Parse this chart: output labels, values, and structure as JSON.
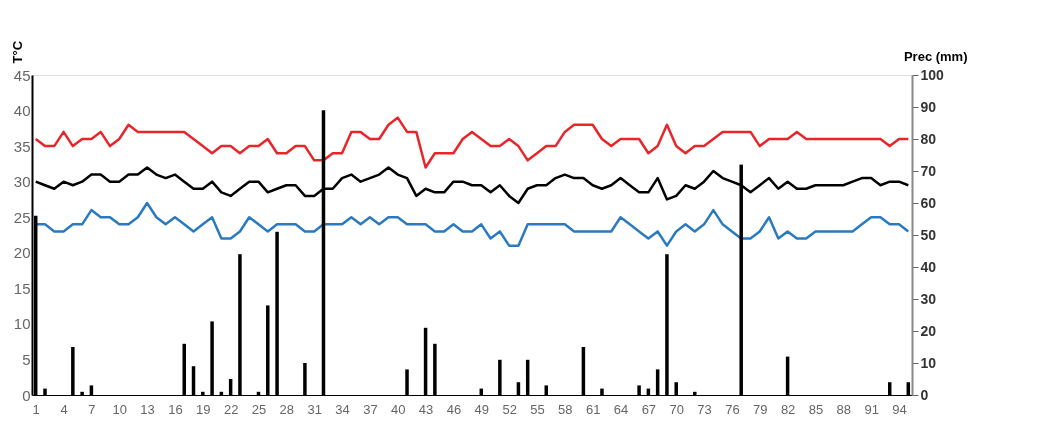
{
  "chart_data": {
    "type": "line",
    "ylabel": "T°C",
    "y2label": "Prec (mm)",
    "x": [
      1,
      2,
      3,
      4,
      5,
      6,
      7,
      8,
      9,
      10,
      11,
      12,
      13,
      14,
      15,
      16,
      17,
      18,
      19,
      20,
      21,
      22,
      23,
      24,
      25,
      26,
      27,
      28,
      29,
      30,
      31,
      32,
      33,
      34,
      35,
      36,
      37,
      38,
      39,
      40,
      41,
      42,
      43,
      44,
      45,
      46,
      47,
      48,
      49,
      50,
      51,
      52,
      53,
      54,
      55,
      56,
      57,
      58,
      59,
      60,
      61,
      62,
      63,
      64,
      65,
      66,
      67,
      68,
      69,
      70,
      71,
      72,
      73,
      74,
      75,
      76,
      77,
      78,
      79,
      80,
      81,
      82,
      83,
      84,
      85,
      86,
      87,
      88,
      89,
      90,
      91,
      92,
      93,
      94,
      95
    ],
    "xlim": [
      0.6,
      95.4
    ],
    "xticks": [
      1,
      4,
      7,
      10,
      13,
      16,
      19,
      22,
      25,
      28,
      31,
      34,
      37,
      40,
      43,
      46,
      49,
      52,
      55,
      58,
      61,
      64,
      67,
      70,
      73,
      76,
      79,
      82,
      85,
      88,
      91,
      94
    ],
    "ylim": [
      0,
      45
    ],
    "yticks": [
      0,
      5,
      10,
      15,
      20,
      25,
      30,
      35,
      40,
      45
    ],
    "y2lim": [
      0,
      100
    ],
    "y2ticks": [
      0,
      10,
      20,
      30,
      40,
      50,
      60,
      70,
      80,
      90,
      100
    ],
    "grid": false,
    "legend": false,
    "marker": "none",
    "line_style": "solid",
    "series": [
      {
        "color": "#e8262a",
        "values": [
          36,
          35,
          35,
          37,
          35,
          36,
          36,
          37,
          35,
          36,
          38,
          37,
          37,
          37,
          37,
          37,
          37,
          36,
          35,
          34,
          35,
          35,
          34,
          35,
          35,
          36,
          34,
          34,
          35,
          35,
          33,
          33,
          34,
          34,
          37,
          37,
          36,
          36,
          38,
          39,
          37,
          37,
          32,
          34,
          34,
          34,
          36,
          37,
          36,
          35,
          35,
          36,
          35,
          33,
          34,
          35,
          35,
          37,
          38,
          38,
          38,
          36,
          35,
          36,
          36,
          36,
          34,
          35,
          38,
          35,
          34,
          35,
          35,
          36,
          37,
          37,
          37,
          37,
          35,
          36,
          36,
          36,
          37,
          36,
          36,
          36,
          36,
          36,
          36,
          36,
          36,
          36,
          35,
          36,
          36
        ]
      },
      {
        "color": "#000000",
        "values": [
          30,
          29.5,
          29,
          30,
          29.5,
          30,
          31,
          31,
          30,
          30,
          31,
          31,
          32,
          31,
          30.5,
          31,
          30,
          29,
          29,
          30,
          28.5,
          28,
          29,
          30,
          30,
          28.5,
          29,
          29.5,
          29.5,
          28,
          28,
          29,
          29,
          30.5,
          31,
          30,
          30.5,
          31,
          32,
          31,
          30.5,
          28,
          29,
          28.5,
          28.5,
          30,
          30,
          29.5,
          29.5,
          28.5,
          29.5,
          28,
          27,
          29,
          29.5,
          29.5,
          30.5,
          31,
          30.5,
          30.5,
          29.5,
          29,
          29.5,
          30.5,
          29.5,
          28.5,
          28.5,
          30.5,
          27.5,
          28,
          29.5,
          29,
          30,
          31.5,
          30.5,
          30,
          29.5,
          28.5,
          29.5,
          30.5,
          29,
          30,
          29,
          29,
          29.5,
          29.5,
          29.5,
          29.5,
          30,
          30.5,
          30.5,
          29.5,
          30,
          30,
          29.5
        ]
      },
      {
        "color": "#2a7abf",
        "values": [
          24,
          24,
          23,
          23,
          24,
          24,
          26,
          25,
          25,
          24,
          24,
          25,
          27,
          25,
          24,
          25,
          24,
          23,
          24,
          25,
          22,
          22,
          23,
          25,
          24,
          23,
          24,
          24,
          24,
          23,
          23,
          24,
          24,
          24,
          25,
          24,
          25,
          24,
          25,
          25,
          24,
          24,
          24,
          23,
          23,
          24,
          23,
          23,
          24,
          22,
          23,
          21,
          21,
          24,
          24,
          24,
          24,
          24,
          23,
          23,
          23,
          23,
          23,
          25,
          24,
          23,
          22,
          23,
          21,
          23,
          24,
          23,
          24,
          26,
          24,
          23,
          22,
          22,
          23,
          25,
          22,
          23,
          22,
          22,
          23,
          23,
          23,
          23,
          23,
          24,
          25,
          25,
          24,
          24,
          23
        ]
      },
      {
        "type": "bar",
        "axis": "y2",
        "color": "#000000",
        "values": [
          56,
          2,
          null,
          null,
          15,
          1,
          3,
          null,
          null,
          null,
          null,
          null,
          null,
          null,
          null,
          null,
          16,
          9,
          1,
          23,
          1,
          5,
          44,
          null,
          1,
          28,
          51,
          null,
          null,
          10,
          null,
          89,
          null,
          null,
          null,
          null,
          null,
          null,
          null,
          null,
          8,
          null,
          21,
          16,
          null,
          null,
          null,
          null,
          2,
          null,
          11,
          null,
          4,
          11,
          null,
          3,
          null,
          null,
          null,
          15,
          null,
          2,
          null,
          null,
          null,
          3,
          2,
          8,
          44,
          4,
          null,
          1,
          null,
          null,
          null,
          null,
          72,
          null,
          null,
          null,
          null,
          12,
          null,
          null,
          null,
          null,
          null,
          null,
          null,
          null,
          null,
          null,
          4,
          null,
          4
        ]
      }
    ]
  }
}
